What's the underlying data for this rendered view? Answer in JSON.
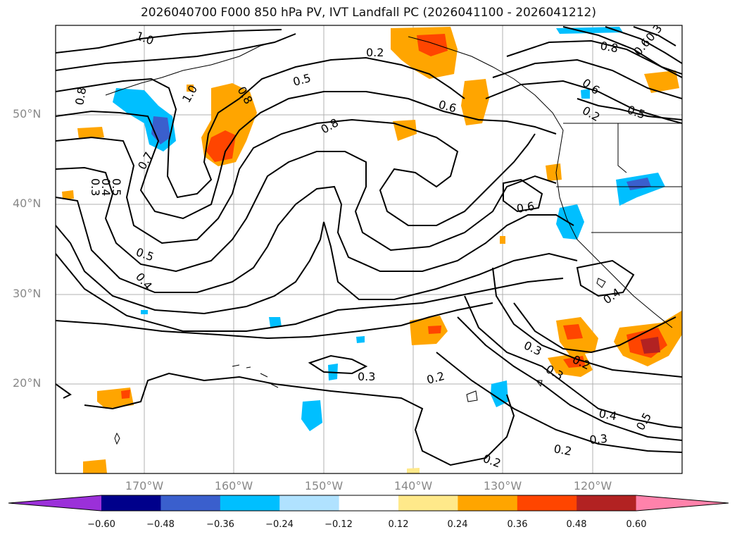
{
  "title": "2026040700 F000 850 hPa PV, IVT Landfall PC (2026041100 - 2026041212)",
  "lat_labels": [
    "50°N",
    "40°N",
    "30°N",
    "20°N"
  ],
  "lon_labels": [
    "170°W",
    "160°W",
    "150°W",
    "140°W",
    "130°W",
    "120°W"
  ],
  "contour_labels": [
    "1.0",
    "0.5",
    "0.8",
    "0.6",
    "0.8",
    "0.6",
    "0.7",
    "0.3",
    "0.4",
    "0.5",
    "1.0",
    "0.8",
    "0.2",
    "0.5",
    "0.6",
    "0.5",
    "0.4",
    "0.4",
    "0.3",
    "0.3",
    "0.2",
    "0.2",
    "0.3",
    "0.2",
    "0.4",
    "0.5",
    "0.3",
    "0.2",
    "0.2",
    "0.8",
    "0.6",
    "0.3"
  ],
  "colorbar": {
    "ticks": [
      "−0.60",
      "−0.48",
      "−0.36",
      "−0.24",
      "−0.12",
      "0.12",
      "0.24",
      "0.36",
      "0.48",
      "0.60"
    ],
    "colors": [
      "#9b30d9",
      "#00008b",
      "#3a5fcd",
      "#00bfff",
      "#b0e2ff",
      "#ffffff",
      "#ffe98a",
      "#ffa500",
      "#ff4500",
      "#b22222",
      "#ff82ab"
    ]
  }
}
